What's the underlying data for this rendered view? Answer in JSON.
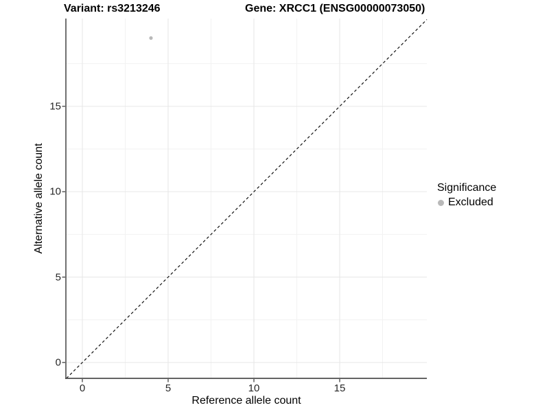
{
  "header": {
    "variant_title": "Variant: rs3213246",
    "gene_title": "Gene: XRCC1 (ENSG00000073050)"
  },
  "chart_data": {
    "type": "scatter",
    "title": "Variant: rs3213246    Gene: XRCC1 (ENSG00000073050)",
    "xlabel": "Reference allele count",
    "ylabel": "Alternative allele count",
    "xlim": [
      -0.96,
      20.08
    ],
    "ylim": [
      -0.93,
      20.14
    ],
    "x_ticks": [
      0,
      5,
      10,
      15
    ],
    "y_ticks": [
      0,
      5,
      10,
      15
    ],
    "x_minor_ticks": [
      2.5,
      7.5,
      12.5,
      17.5
    ],
    "y_minor_ticks": [
      2.5,
      7.5,
      12.5,
      17.5
    ],
    "grid": true,
    "points": [
      {
        "x": 4,
        "y": 19,
        "significance": "Excluded"
      }
    ],
    "reference_line": {
      "slope": 1,
      "intercept": 0,
      "style": "dashed",
      "color": "#111111"
    },
    "legend": {
      "title": "Significance",
      "position": "right",
      "entries": [
        {
          "label": "Excluded",
          "color": "#b9b9b9",
          "marker": "circle"
        }
      ]
    },
    "colors": {
      "background": "#ffffff",
      "grid_major": "#e6e6e6",
      "grid_minor": "#f2f2f2",
      "axis_line": "#4d4d4d",
      "tick_mark": "#333333",
      "tick_label": "#262626"
    }
  }
}
